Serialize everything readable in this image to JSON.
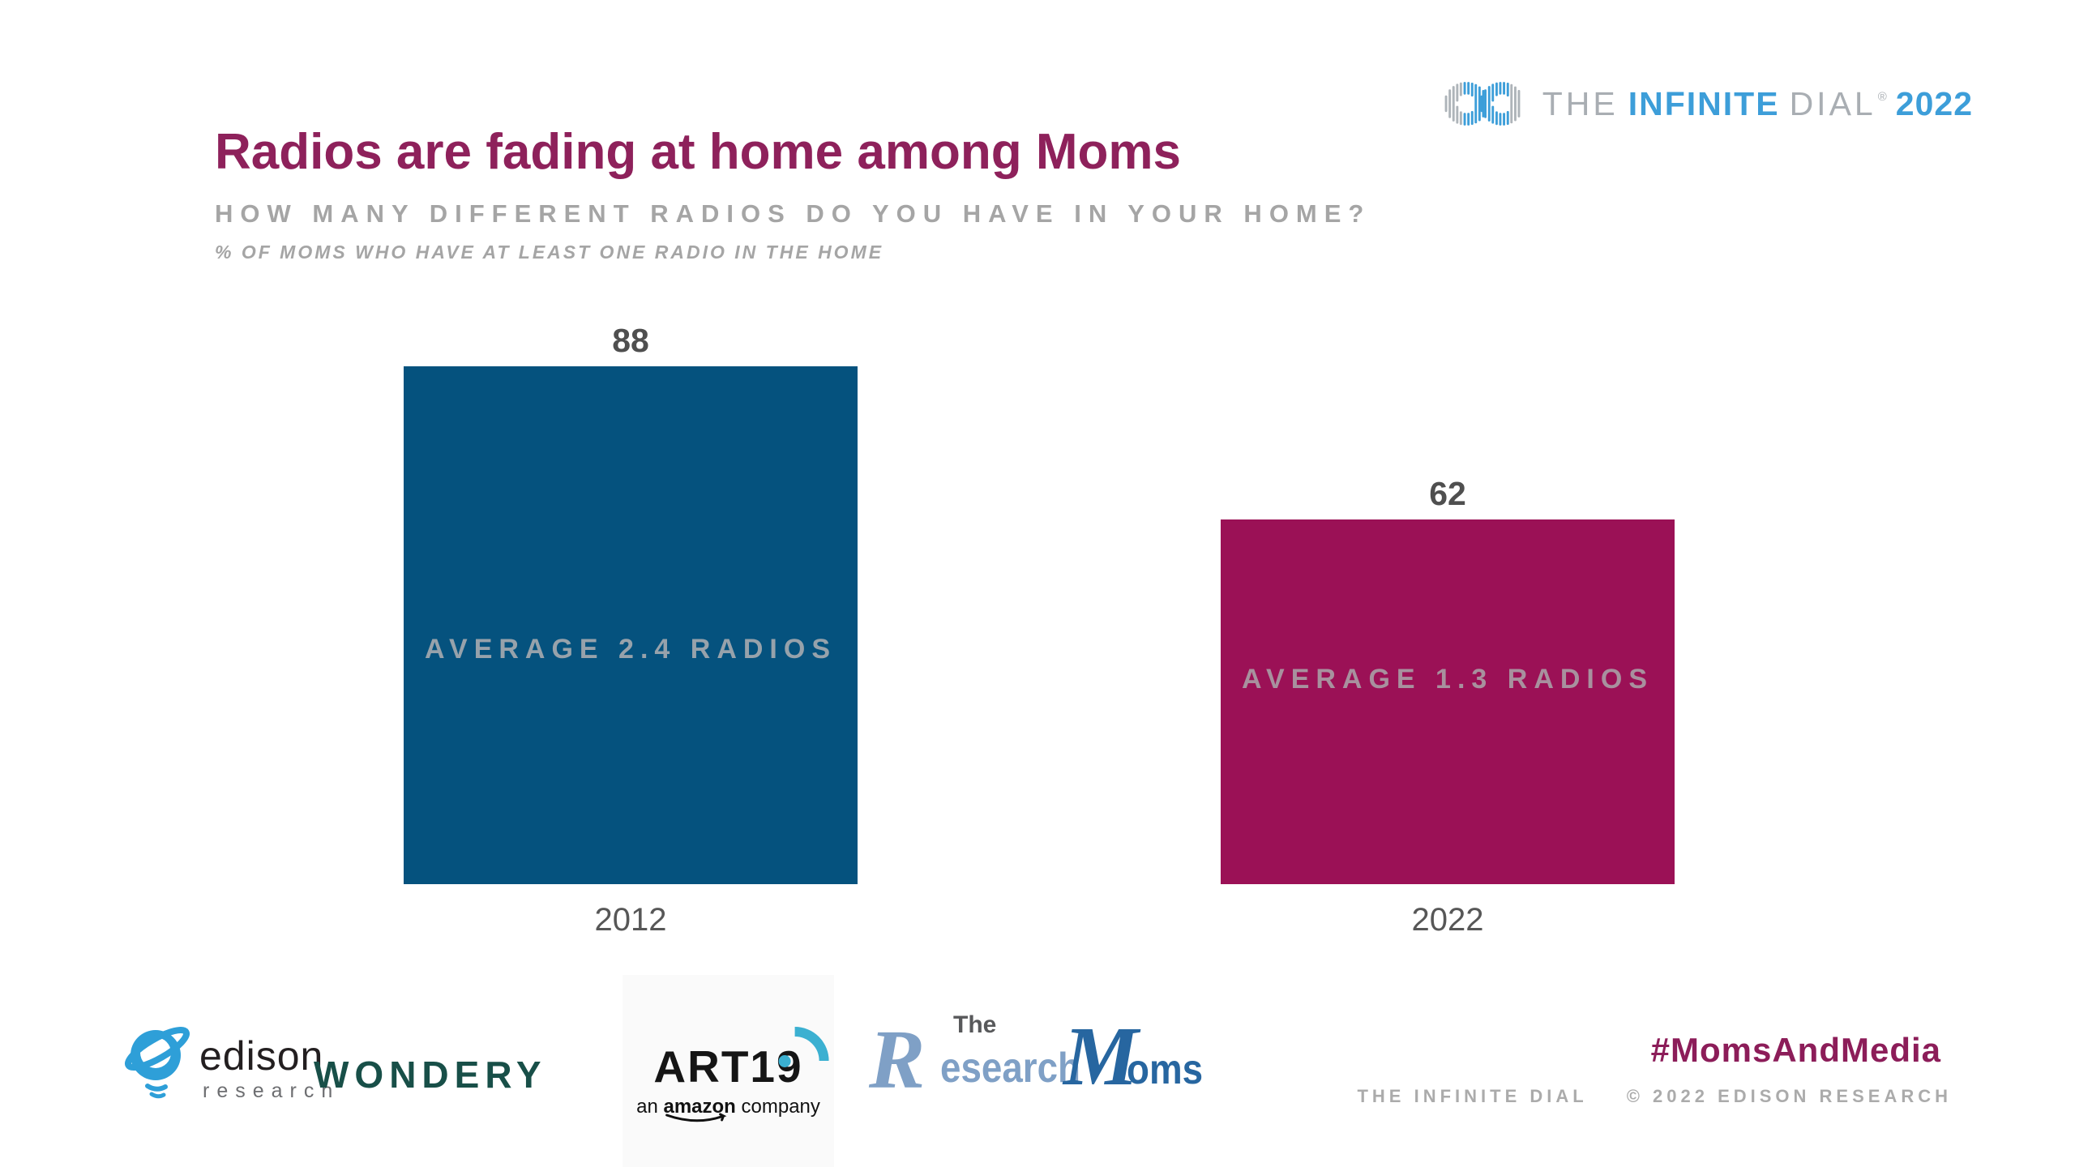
{
  "brand": {
    "the": "THE",
    "infinite": "INFINITE",
    "dial": "DIAL",
    "registered": "®",
    "year": "2022"
  },
  "header": {
    "title": "Radios are fading at home among Moms",
    "subtitle": "HOW MANY DIFFERENT RADIOS DO YOU HAVE IN YOUR HOME?",
    "note": "% OF MOMS WHO HAVE AT LEAST ONE RADIO IN THE HOME"
  },
  "chart_data": {
    "type": "bar",
    "title": "Radios are fading at home among Moms",
    "question": "HOW MANY DIFFERENT RADIOS DO YOU HAVE IN YOUR HOME?",
    "base_note": "% OF MOMS WHO HAVE AT LEAST ONE RADIO IN THE HOME",
    "categories": [
      "2012",
      "2022"
    ],
    "values": [
      88,
      62
    ],
    "bar_annotations": [
      "AVERAGE 2.4 RADIOS",
      "AVERAGE 1.3 RADIOS"
    ],
    "bar_colors": [
      "#05527E",
      "#9B1156"
    ],
    "annotation_colors": [
      "#97A2AB",
      "#A8919E"
    ],
    "value_label_color": "#4F4F4F",
    "axis_label_color": "#575757",
    "ylim": [
      0,
      100
    ],
    "grid": false,
    "legend": false,
    "xlabel": "",
    "ylabel": ""
  },
  "sponsors": {
    "edison": {
      "name": "edison",
      "sub": "research"
    },
    "wondery": {
      "name": "WONDERY"
    },
    "art19": {
      "name": "ART19",
      "sub_prefix": "an ",
      "sub_bold": "amazon",
      "sub_suffix": " company"
    },
    "research_moms": {
      "r": "R",
      "the": "The",
      "esearch": "esearch",
      "m": "M",
      "oms": "oms"
    }
  },
  "footer": {
    "hashtag": "#MomsAndMedia",
    "credit_left": "THE INFINITE DIAL",
    "credit_right": "© 2022 EDISON RESEARCH"
  },
  "colors": {
    "accent_magenta": "#8E215B",
    "accent_blue": "#3D9ED9",
    "muted_gray": "#A5A5A5"
  }
}
